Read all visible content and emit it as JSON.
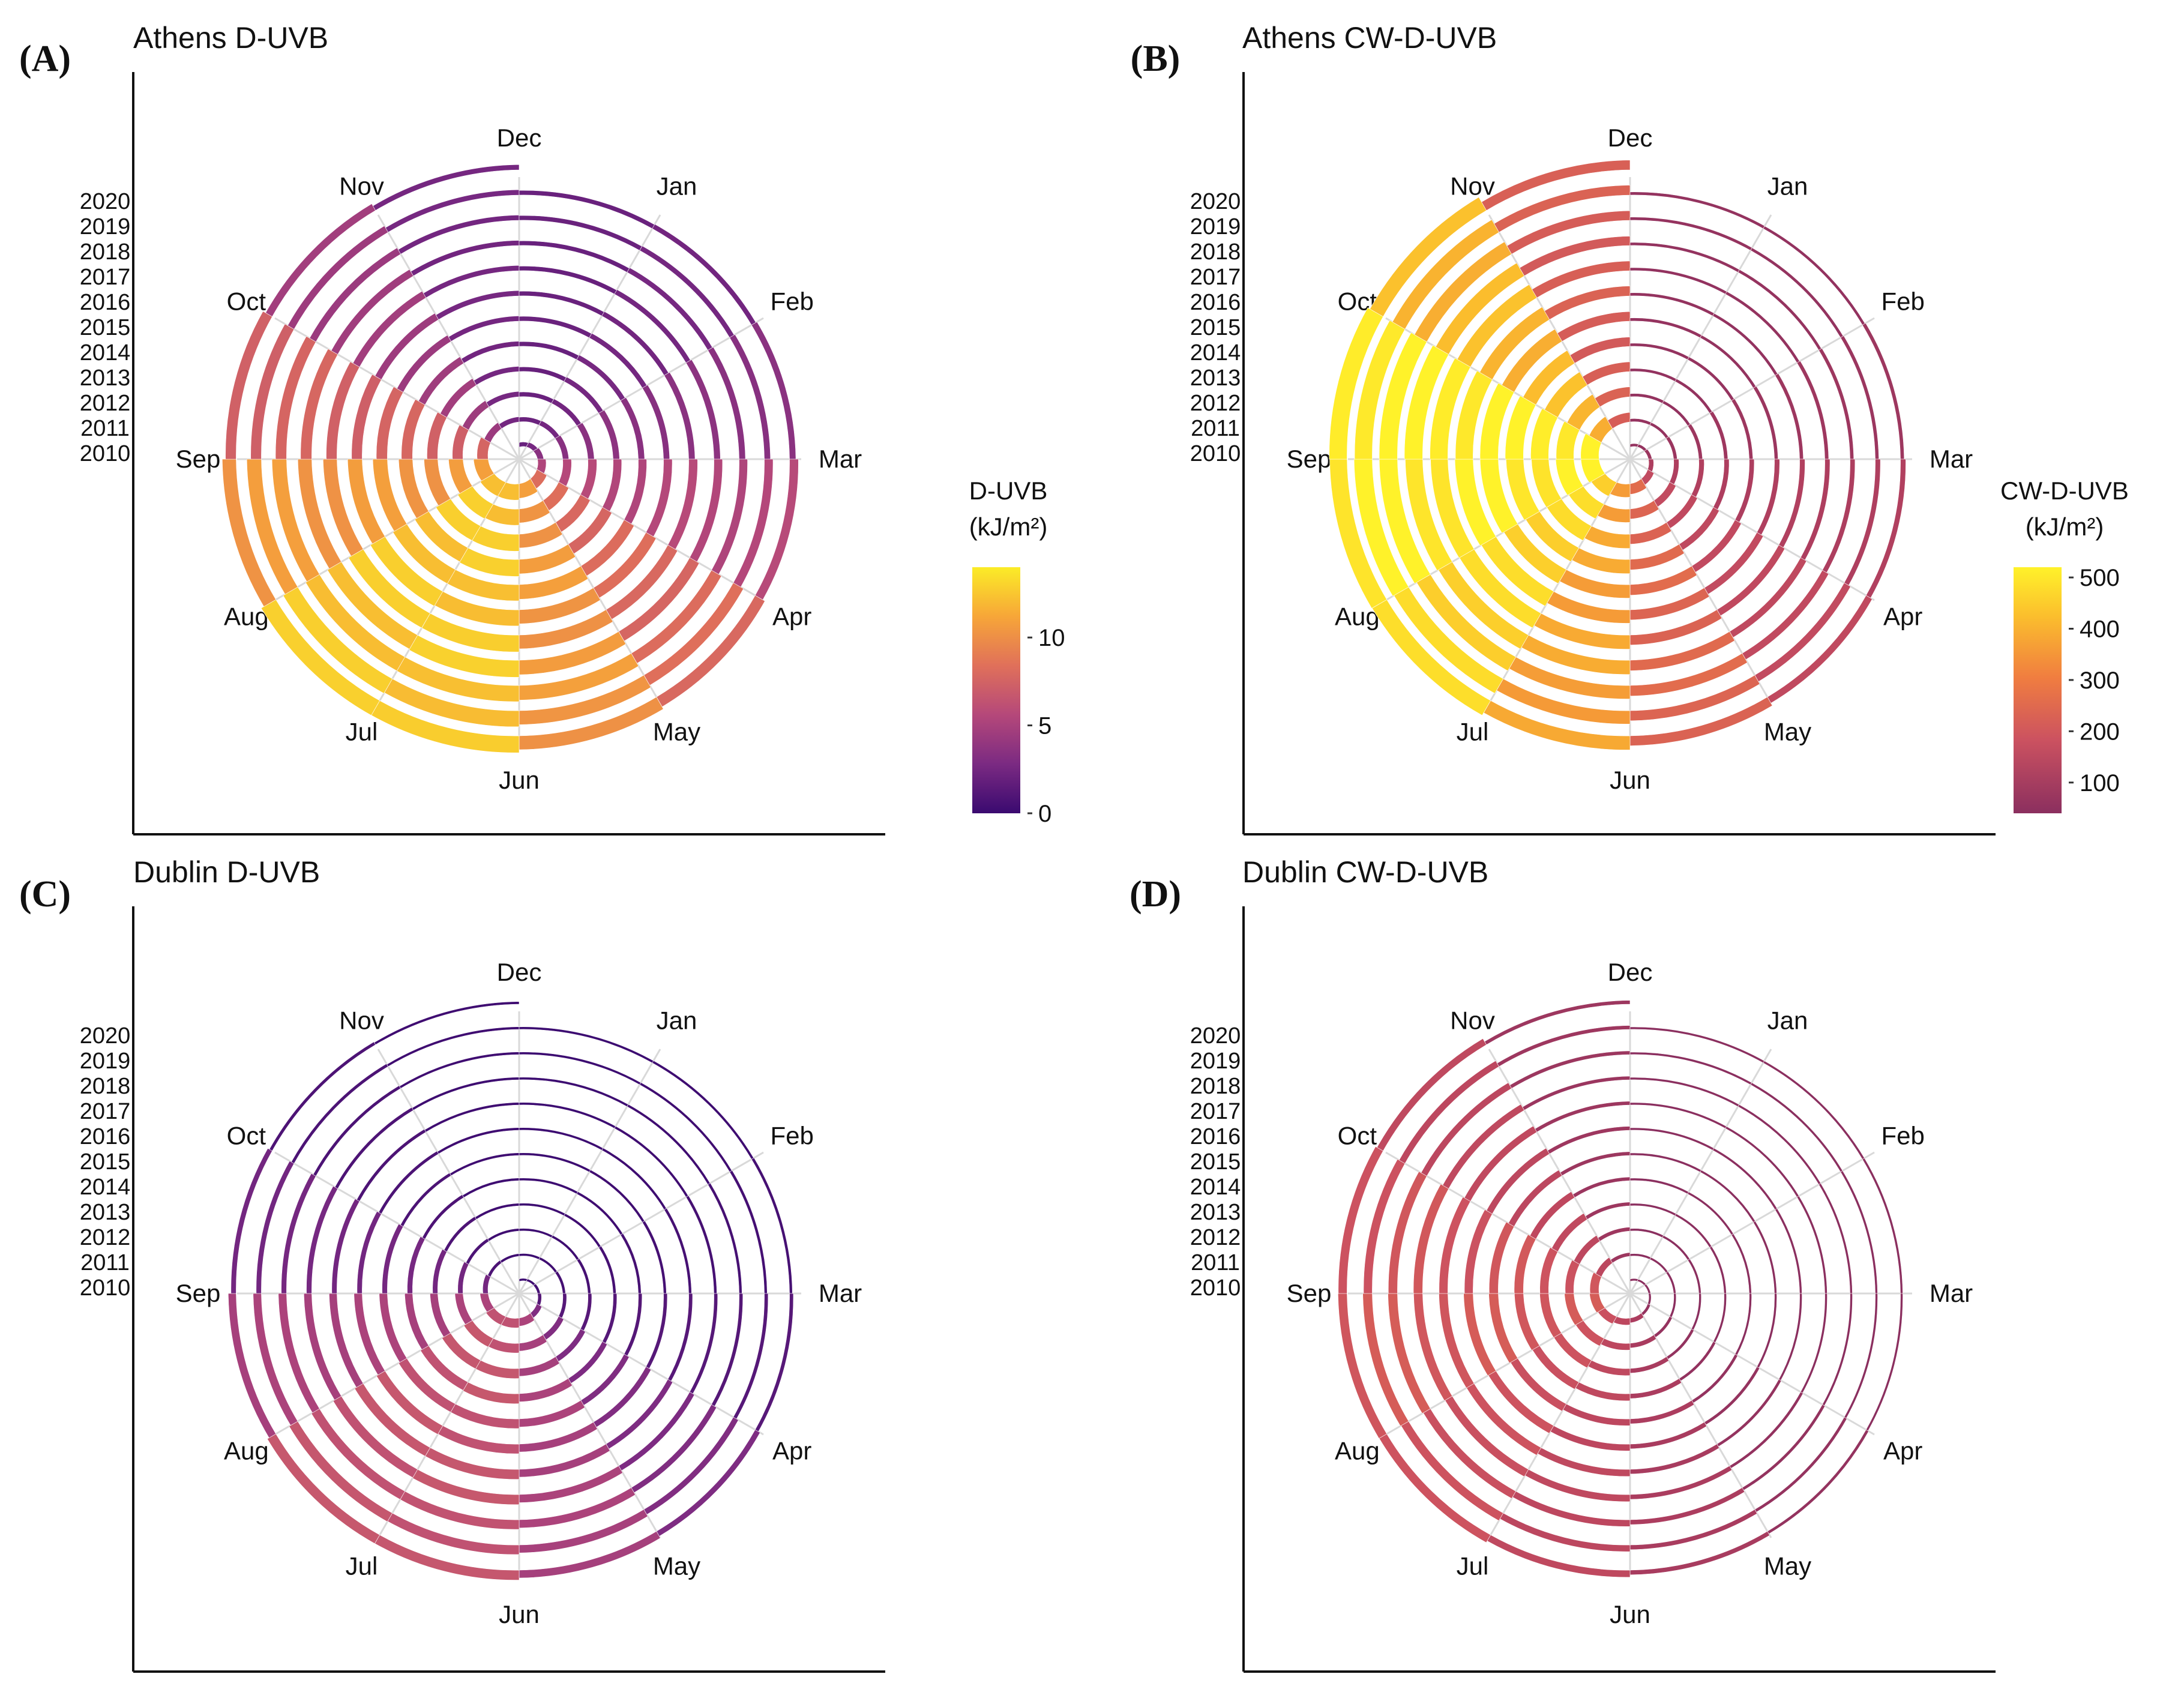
{
  "figure": {
    "panels": [
      {
        "id": "A",
        "panel_label": "(A)",
        "title": "Athens D-UVB"
      },
      {
        "id": "B",
        "panel_label": "(B)",
        "title": "Athens CW-D-UVB"
      },
      {
        "id": "C",
        "panel_label": "(C)",
        "title": "Dublin D-UVB"
      },
      {
        "id": "D",
        "panel_label": "(D)",
        "title": "Dublin CW-D-UVB"
      }
    ],
    "legends": [
      {
        "id": "d-uvb",
        "title_line1": "D-UVB",
        "title_line2": "(kJ/m²)",
        "ticks": [
          "10",
          "5",
          "0"
        ]
      },
      {
        "id": "cw-d-uvb",
        "title_line1": "CW-D-UVB",
        "title_line2": "(kJ/m²)",
        "ticks": [
          "500",
          "400",
          "300",
          "200",
          "100"
        ]
      }
    ]
  },
  "chart_data": [
    {
      "panel": "A",
      "type": "spiral",
      "title": "Athens D-UVB",
      "variable": "D-UVB",
      "units": "kJ/m²",
      "color_range": [
        0,
        14
      ],
      "months": [
        "Dec",
        "Jan",
        "Feb",
        "Mar",
        "Apr",
        "May",
        "Jun",
        "Jul",
        "Aug",
        "Sep",
        "Oct",
        "Nov"
      ],
      "years": [
        "2010",
        "2011",
        "2012",
        "2013",
        "2014",
        "2015",
        "2016",
        "2017",
        "2018",
        "2019",
        "2020"
      ],
      "monthly_values": [
        2.0,
        2.5,
        3.5,
        5.5,
        8.0,
        10.5,
        12.5,
        12.5,
        10.5,
        7.5,
        4.5,
        2.5
      ]
    },
    {
      "panel": "B",
      "type": "spiral",
      "title": "Athens CW-D-UVB",
      "variable": "CW-D-UVB",
      "units": "kJ/m²",
      "color_range": [
        40,
        500
      ],
      "months": [
        "Dec",
        "Jan",
        "Feb",
        "Mar",
        "Apr",
        "May",
        "Jun",
        "Jul",
        "Aug",
        "Sep",
        "Oct",
        "Nov"
      ],
      "years": [
        "2010",
        "2011",
        "2012",
        "2013",
        "2014",
        "2015",
        "2016",
        "2017",
        "2018",
        "2019",
        "2020"
      ],
      "monthly_values": [
        60,
        60,
        80,
        120,
        180,
        270,
        370,
        450,
        490,
        500,
        400,
        250
      ]
    },
    {
      "panel": "C",
      "type": "spiral",
      "title": "Dublin D-UVB",
      "variable": "D-UVB",
      "units": "kJ/m²",
      "color_range": [
        0,
        14
      ],
      "months": [
        "Dec",
        "Jan",
        "Feb",
        "Mar",
        "Apr",
        "May",
        "Jun",
        "Jul",
        "Aug",
        "Sep",
        "Oct",
        "Nov"
      ],
      "years": [
        "2010",
        "2011",
        "2012",
        "2013",
        "2014",
        "2015",
        "2016",
        "2017",
        "2018",
        "2019",
        "2020"
      ],
      "monthly_values": [
        0.1,
        0.2,
        0.5,
        1.2,
        3.0,
        5.0,
        6.5,
        6.5,
        5.0,
        2.5,
        0.8,
        0.2
      ]
    },
    {
      "panel": "D",
      "type": "spiral",
      "title": "Dublin CW-D-UVB",
      "variable": "CW-D-UVB",
      "units": "kJ/m²",
      "color_range": [
        40,
        500
      ],
      "months": [
        "Dec",
        "Jan",
        "Feb",
        "Mar",
        "Apr",
        "May",
        "Jun",
        "Jul",
        "Aug",
        "Sep",
        "Oct",
        "Nov"
      ],
      "years": [
        "2010",
        "2011",
        "2012",
        "2013",
        "2014",
        "2015",
        "2016",
        "2017",
        "2018",
        "2019",
        "2020"
      ],
      "monthly_values": [
        5,
        5,
        10,
        25,
        60,
        110,
        170,
        220,
        240,
        230,
        170,
        80
      ]
    }
  ]
}
